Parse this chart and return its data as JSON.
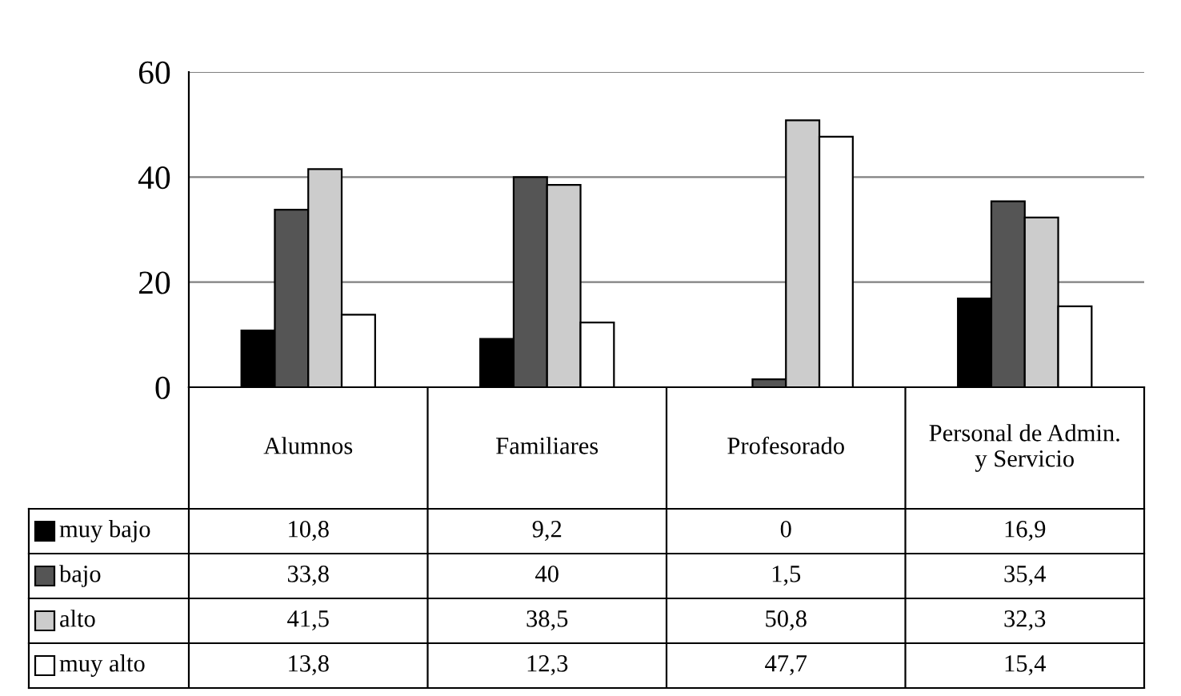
{
  "chart_data": {
    "type": "bar",
    "categories": [
      "Alumnos",
      "Familiares",
      "Profesorado",
      "Personal de Admin.\ny Servicio"
    ],
    "series": [
      {
        "name": "muy bajo",
        "color": "#000000",
        "values": [
          10.8,
          9.2,
          0,
          16.9
        ],
        "value_labels": [
          "10,8",
          "9,2",
          "0",
          "16,9"
        ]
      },
      {
        "name": "bajo",
        "color": "#555555",
        "values": [
          33.8,
          40,
          1.5,
          35.4
        ],
        "value_labels": [
          "33,8",
          "40",
          "1,5",
          "35,4"
        ]
      },
      {
        "name": "alto",
        "color": "#cccccc",
        "values": [
          41.5,
          38.5,
          50.8,
          32.3
        ],
        "value_labels": [
          "41,5",
          "38,5",
          "50,8",
          "32,3"
        ]
      },
      {
        "name": "muy alto",
        "color": "#ffffff",
        "values": [
          13.8,
          12.3,
          47.7,
          15.4
        ],
        "value_labels": [
          "13,8",
          "12,3",
          "47,7",
          "15,4"
        ]
      }
    ],
    "ylim": [
      0,
      60
    ],
    "yticks": [
      0,
      20,
      40,
      60
    ],
    "grid": "y",
    "legend": "bottom left"
  }
}
